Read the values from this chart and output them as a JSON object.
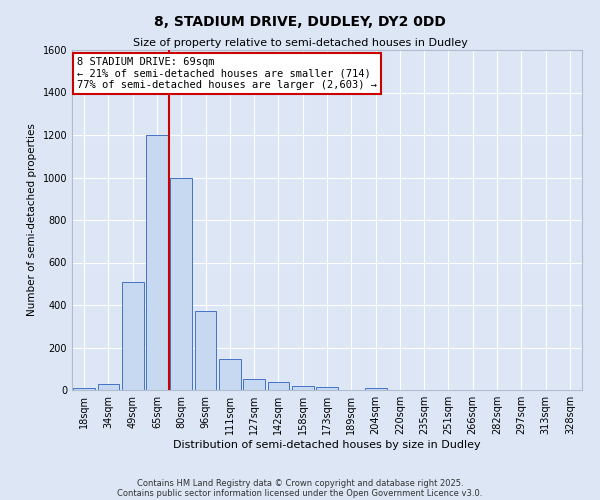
{
  "title": "8, STADIUM DRIVE, DUDLEY, DY2 0DD",
  "subtitle": "Size of property relative to semi-detached houses in Dudley",
  "xlabel": "Distribution of semi-detached houses by size in Dudley",
  "ylabel": "Number of semi-detached properties",
  "bin_labels": [
    "18sqm",
    "34sqm",
    "49sqm",
    "65sqm",
    "80sqm",
    "96sqm",
    "111sqm",
    "127sqm",
    "142sqm",
    "158sqm",
    "173sqm",
    "189sqm",
    "204sqm",
    "220sqm",
    "235sqm",
    "251sqm",
    "266sqm",
    "282sqm",
    "297sqm",
    "313sqm",
    "328sqm"
  ],
  "bar_values": [
    10,
    30,
    510,
    1200,
    1000,
    370,
    145,
    50,
    40,
    20,
    15,
    0,
    10,
    0,
    0,
    0,
    0,
    0,
    0,
    0,
    0
  ],
  "bar_color": "#c6d9f0",
  "bar_edge_color": "#4472c4",
  "vline_x_index": 3.5,
  "marker_label": "8 STADIUM DRIVE: 69sqm",
  "annotation_line1": "← 21% of semi-detached houses are smaller (714)",
  "annotation_line2": "77% of semi-detached houses are larger (2,603) →",
  "vline_color": "#cc0000",
  "annotation_box_edge": "#cc0000",
  "ylim": [
    0,
    1600
  ],
  "yticks": [
    0,
    200,
    400,
    600,
    800,
    1000,
    1200,
    1400,
    1600
  ],
  "bg_color": "#dce6f5",
  "footer1": "Contains HM Land Registry data © Crown copyright and database right 2025.",
  "footer2": "Contains public sector information licensed under the Open Government Licence v3.0."
}
